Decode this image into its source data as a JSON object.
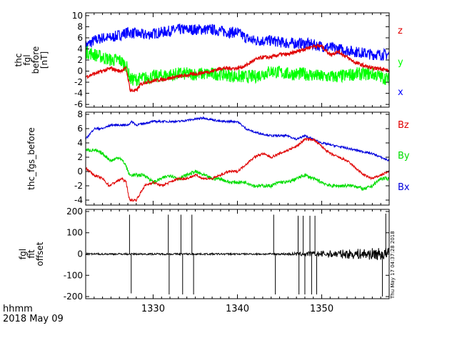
{
  "footer": {
    "time_label": "hhmm",
    "date_label": "2018 May 09"
  },
  "timestamp": "Thu May 17 04:37:28 2018",
  "x_axis": {
    "range": [
      1322,
      1358
    ],
    "ticks": [
      1330,
      1340,
      1350
    ],
    "tick_labels": [
      "1330",
      "1340",
      "1350"
    ]
  },
  "chart_data": [
    {
      "type": "line",
      "panel": "top",
      "ylabel_lines": [
        "thc",
        "fgl",
        "before",
        "[nT]"
      ],
      "ylim": [
        -6.5,
        10.5
      ],
      "y_ticks": [
        -6,
        -4,
        -2,
        0,
        2,
        4,
        6,
        8,
        10
      ],
      "legend_placement": "right",
      "series": [
        {
          "name": "z",
          "color": "#e00000",
          "noise": 0.35,
          "points": [
            [
              1322,
              -1.0
            ],
            [
              1323,
              -0.5
            ],
            [
              1324,
              0.0
            ],
            [
              1325,
              0.5
            ],
            [
              1326,
              0.0
            ],
            [
              1326.8,
              0.5
            ],
            [
              1327.3,
              -3.5
            ],
            [
              1328,
              -3.5
            ],
            [
              1328.5,
              -2.5
            ],
            [
              1329,
              -2.0
            ],
            [
              1331,
              -1.5
            ],
            [
              1333,
              -1.0
            ],
            [
              1335,
              -0.5
            ],
            [
              1337,
              0.0
            ],
            [
              1338,
              0.5
            ],
            [
              1340,
              0.5
            ],
            [
              1341,
              1.0
            ],
            [
              1342,
              2.0
            ],
            [
              1343,
              2.5
            ],
            [
              1344,
              2.5
            ],
            [
              1345,
              3.0
            ],
            [
              1346,
              3.0
            ],
            [
              1347,
              3.5
            ],
            [
              1348,
              4.0
            ],
            [
              1349,
              4.5
            ],
            [
              1350,
              4.5
            ],
            [
              1351,
              3.0
            ],
            [
              1352,
              3.5
            ],
            [
              1353,
              2.5
            ],
            [
              1354,
              1.5
            ],
            [
              1355,
              1.0
            ],
            [
              1356,
              0.5
            ],
            [
              1357,
              0.5
            ],
            [
              1358,
              0.0
            ]
          ]
        },
        {
          "name": "y",
          "color": "#00ff00",
          "noise": 1.2,
          "points": [
            [
              1322,
              3.5
            ],
            [
              1323,
              3.0
            ],
            [
              1324,
              2.5
            ],
            [
              1325,
              2.0
            ],
            [
              1326,
              2.0
            ],
            [
              1326.8,
              1.0
            ],
            [
              1327.3,
              -1.5
            ],
            [
              1328,
              -1.5
            ],
            [
              1330,
              -1.0
            ],
            [
              1333,
              -0.5
            ],
            [
              1336,
              -0.5
            ],
            [
              1338,
              -0.5
            ],
            [
              1340,
              -1.0
            ],
            [
              1342,
              -1.0
            ],
            [
              1344,
              0.0
            ],
            [
              1346,
              -0.5
            ],
            [
              1348,
              -0.5
            ],
            [
              1350,
              -1.0
            ],
            [
              1352,
              -1.0
            ],
            [
              1354,
              -0.5
            ],
            [
              1356,
              -0.5
            ],
            [
              1358,
              -1.5
            ]
          ]
        },
        {
          "name": "x",
          "color": "#0000ff",
          "noise": 1.0,
          "points": [
            [
              1322,
              4.5
            ],
            [
              1323,
              5.5
            ],
            [
              1324,
              6.0
            ],
            [
              1325,
              6.0
            ],
            [
              1326,
              6.5
            ],
            [
              1327,
              7.0
            ],
            [
              1329,
              6.5
            ],
            [
              1331,
              7.0
            ],
            [
              1333,
              7.5
            ],
            [
              1335,
              7.5
            ],
            [
              1337,
              7.5
            ],
            [
              1339,
              7.0
            ],
            [
              1340,
              7.0
            ],
            [
              1341,
              6.0
            ],
            [
              1342,
              5.5
            ],
            [
              1344,
              5.5
            ],
            [
              1346,
              5.0
            ],
            [
              1348,
              5.0
            ],
            [
              1350,
              4.5
            ],
            [
              1352,
              4.0
            ],
            [
              1354,
              3.5
            ],
            [
              1356,
              3.0
            ],
            [
              1358,
              3.0
            ]
          ]
        }
      ]
    },
    {
      "type": "line",
      "panel": "middle",
      "ylabel_lines": [
        "thc_fgs_before"
      ],
      "ylim": [
        -4.7,
        8.3
      ],
      "y_ticks": [
        -4,
        -2,
        0,
        2,
        4,
        6,
        8
      ],
      "legend_placement": "right",
      "series": [
        {
          "name": "Bz",
          "color": "#e00000",
          "noise": 0.18,
          "points": [
            [
              1322,
              0.5
            ],
            [
              1323,
              -0.5
            ],
            [
              1324,
              -1.0
            ],
            [
              1324.8,
              -2.0
            ],
            [
              1325.5,
              -1.5
            ],
            [
              1326.3,
              -1.0
            ],
            [
              1326.8,
              -1.5
            ],
            [
              1327.2,
              -4.0
            ],
            [
              1328,
              -4.0
            ],
            [
              1328.5,
              -3.0
            ],
            [
              1329,
              -2.0
            ],
            [
              1330,
              -1.5
            ],
            [
              1331,
              -2.0
            ],
            [
              1332,
              -1.5
            ],
            [
              1333,
              -1.0
            ],
            [
              1334,
              -1.0
            ],
            [
              1335,
              -0.5
            ],
            [
              1336,
              -1.0
            ],
            [
              1337,
              -1.0
            ],
            [
              1338,
              -0.5
            ],
            [
              1339,
              0.0
            ],
            [
              1340,
              0.0
            ],
            [
              1341,
              1.0
            ],
            [
              1342,
              2.0
            ],
            [
              1343,
              2.5
            ],
            [
              1344,
              2.0
            ],
            [
              1345,
              2.5
            ],
            [
              1346,
              3.0
            ],
            [
              1347,
              3.5
            ],
            [
              1348,
              4.5
            ],
            [
              1349,
              4.5
            ],
            [
              1350,
              3.5
            ],
            [
              1351,
              2.5
            ],
            [
              1352,
              2.0
            ],
            [
              1353,
              1.5
            ],
            [
              1354,
              0.5
            ],
            [
              1355,
              -0.5
            ],
            [
              1356,
              -1.0
            ],
            [
              1357,
              -0.5
            ],
            [
              1358,
              0.0
            ]
          ]
        },
        {
          "name": "By",
          "color": "#00dd00",
          "noise": 0.25,
          "points": [
            [
              1322,
              3.0
            ],
            [
              1323,
              3.0
            ],
            [
              1324,
              2.5
            ],
            [
              1325,
              1.5
            ],
            [
              1326,
              2.0
            ],
            [
              1326.7,
              1.0
            ],
            [
              1327.2,
              -0.5
            ],
            [
              1328,
              -0.5
            ],
            [
              1329,
              -0.5
            ],
            [
              1330,
              -1.5
            ],
            [
              1331,
              -1.0
            ],
            [
              1332,
              -0.5
            ],
            [
              1333,
              -1.0
            ],
            [
              1334,
              -0.5
            ],
            [
              1335,
              0.0
            ],
            [
              1336,
              -0.5
            ],
            [
              1337,
              -1.0
            ],
            [
              1338,
              -1.0
            ],
            [
              1339,
              -1.5
            ],
            [
              1340,
              -1.5
            ],
            [
              1341,
              -1.5
            ],
            [
              1342,
              -2.0
            ],
            [
              1343,
              -2.0
            ],
            [
              1344,
              -2.0
            ],
            [
              1345,
              -1.5
            ],
            [
              1346,
              -1.5
            ],
            [
              1347,
              -1.0
            ],
            [
              1348,
              -0.5
            ],
            [
              1349,
              -1.0
            ],
            [
              1350,
              -1.5
            ],
            [
              1351,
              -2.0
            ],
            [
              1352,
              -2.0
            ],
            [
              1353,
              -2.0
            ],
            [
              1354,
              -2.0
            ],
            [
              1355,
              -2.5
            ],
            [
              1356,
              -2.0
            ],
            [
              1357,
              -1.0
            ],
            [
              1358,
              -1.0
            ]
          ]
        },
        {
          "name": "Bx",
          "color": "#0000dd",
          "noise": 0.15,
          "points": [
            [
              1322,
              4.5
            ],
            [
              1323,
              6.0
            ],
            [
              1324,
              6.0
            ],
            [
              1325,
              6.5
            ],
            [
              1326,
              6.5
            ],
            [
              1327,
              6.5
            ],
            [
              1327.5,
              7.0
            ],
            [
              1328,
              6.5
            ],
            [
              1330,
              7.0
            ],
            [
              1333,
              7.0
            ],
            [
              1336,
              7.5
            ],
            [
              1338,
              7.0
            ],
            [
              1340,
              7.0
            ],
            [
              1341,
              6.0
            ],
            [
              1342,
              5.5
            ],
            [
              1344,
              5.0
            ],
            [
              1346,
              5.0
            ],
            [
              1347,
              4.5
            ],
            [
              1348,
              5.0
            ],
            [
              1349,
              4.5
            ],
            [
              1350,
              4.0
            ],
            [
              1352,
              3.5
            ],
            [
              1354,
              3.0
            ],
            [
              1356,
              2.5
            ],
            [
              1357,
              2.0
            ],
            [
              1358,
              1.5
            ]
          ]
        }
      ]
    },
    {
      "type": "line",
      "panel": "bottom",
      "ylabel_lines": [
        "fgl",
        "fit",
        "offset"
      ],
      "ylim": [
        -210,
        210
      ],
      "y_ticks": [
        -200,
        -100,
        0,
        100,
        200
      ],
      "series": [
        {
          "name": "",
          "color": "#000000",
          "baseline_noise": 4,
          "spikes": [
            [
              1327.2,
              185
            ],
            [
              1327.4,
              -185
            ],
            [
              1331.8,
              185
            ],
            [
              1331.9,
              -190
            ],
            [
              1333.3,
              185
            ],
            [
              1333.5,
              -190
            ],
            [
              1334.6,
              185
            ],
            [
              1334.8,
              -190
            ],
            [
              1344.3,
              185
            ],
            [
              1344.5,
              -190
            ],
            [
              1347.2,
              180
            ],
            [
              1347.3,
              -190
            ],
            [
              1347.8,
              180
            ],
            [
              1348.0,
              -190
            ],
            [
              1348.6,
              180
            ],
            [
              1348.8,
              -190
            ],
            [
              1349.2,
              180
            ],
            [
              1349.4,
              -190
            ],
            [
              1357.2,
              -200
            ],
            [
              1357.6,
              190
            ]
          ]
        }
      ]
    }
  ]
}
